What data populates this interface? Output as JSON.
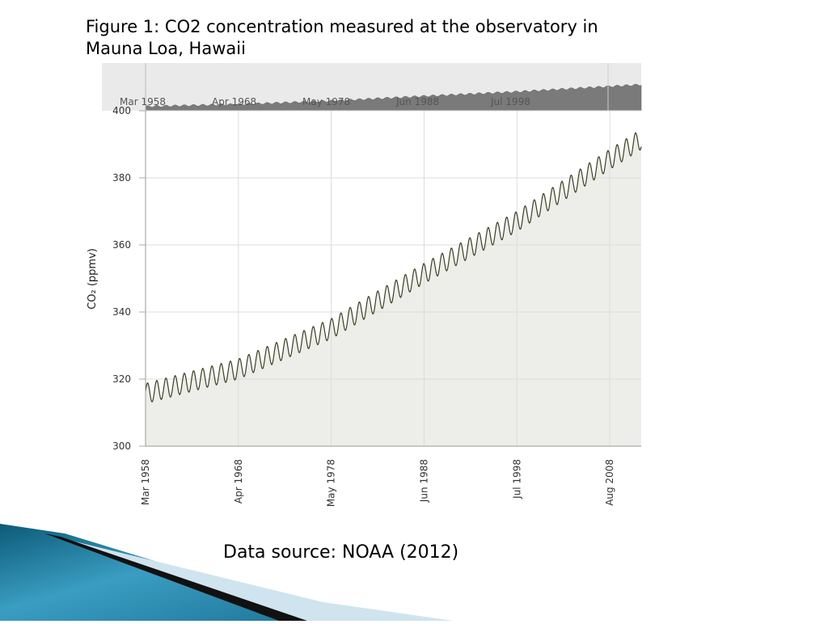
{
  "slide": {
    "caption": "Figure 1: CO2 concentration measured at the observatory in Mauna Loa, Hawaii",
    "source": "Data source: NOAA (2012)",
    "accent_color": "#1f7f9e"
  },
  "chart_data": {
    "type": "line",
    "title": "",
    "xlabel": "",
    "ylabel": "CO₂ (ppmv)",
    "ylim": [
      300,
      400
    ],
    "xlim": [
      "Mar 1958",
      "Jan 2012"
    ],
    "grid": true,
    "x_tick_labels": [
      "Mar 1958",
      "Apr 1968",
      "May 1978",
      "Jun 1988",
      "Jul 1998",
      "Aug 2008"
    ],
    "y_ticks": [
      300,
      320,
      340,
      360,
      380,
      400
    ],
    "navigator_labels": [
      "Mar 1958",
      "Apr 1968",
      "May 1978",
      "Jun 1988",
      "Jul 1998"
    ],
    "seasonal_amplitude_ppmv": 3,
    "line_color": "#3a4020",
    "fill_color": "#ededea",
    "series": [
      {
        "x": [
          "1958-03",
          "1968-04",
          "1978-05",
          "1988-06",
          "1998-07",
          "2008-08",
          "2012-01"
        ],
        "values": [
          315.7,
          323.0,
          335.0,
          351.5,
          367.0,
          385.5,
          391.5
        ]
      }
    ]
  }
}
